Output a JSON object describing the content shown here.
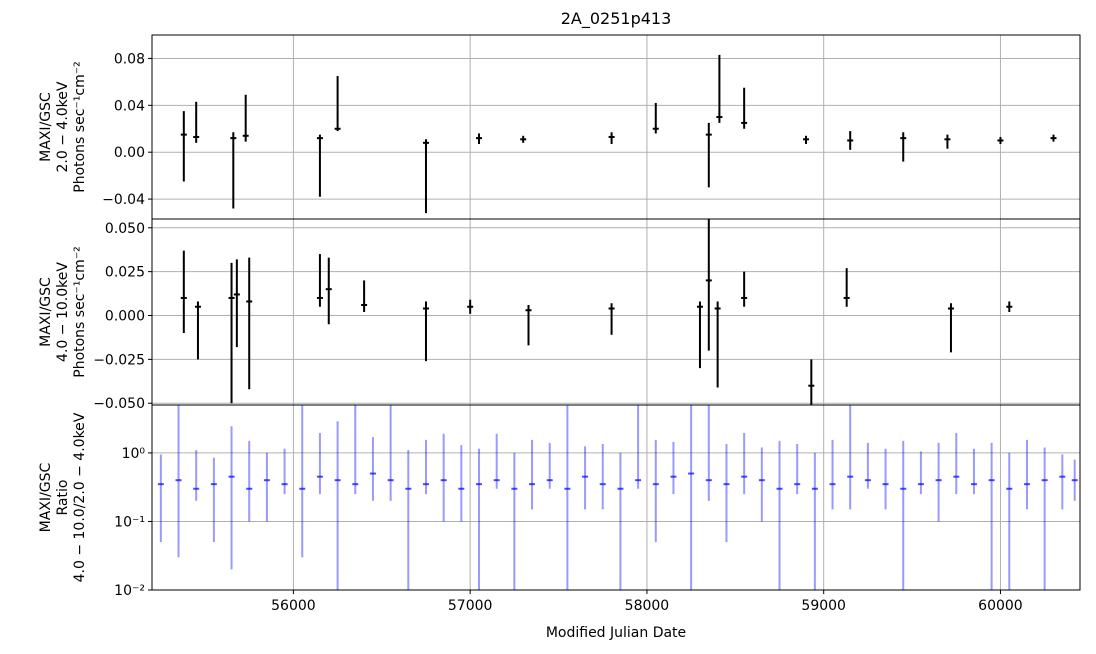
{
  "chart_data": [
    {
      "type": "line",
      "panel": "top",
      "title": "2A_0251p413",
      "ylabel_lines": [
        "MAXI/GSC",
        "2.0 − 4.0keV",
        "Photons sec⁻¹cm⁻²"
      ],
      "xlim": [
        55200,
        60450
      ],
      "ylim": [
        -0.057,
        0.1
      ],
      "yticks": [
        -0.04,
        0.0,
        0.04,
        0.08
      ],
      "ytick_labels": [
        "−0.04",
        "0.00",
        "0.04",
        "0.08"
      ],
      "grid": true,
      "series": [
        {
          "color": "#000000",
          "x": [
            55380,
            55450,
            55660,
            55730,
            56150,
            56250,
            56750,
            57050,
            57300,
            57800,
            58050,
            58350,
            58410,
            58550,
            58900,
            59150,
            59450,
            59700,
            60000,
            60300
          ],
          "y": [
            0.015,
            0.013,
            0.012,
            0.014,
            0.012,
            0.02,
            0.008,
            0.012,
            0.011,
            0.013,
            0.02,
            0.015,
            0.03,
            0.025,
            0.011,
            0.01,
            0.012,
            0.011,
            0.01,
            0.012
          ],
          "yerr_low": [
            0.04,
            0.005,
            0.06,
            0.005,
            0.05,
            0.002,
            0.06,
            0.005,
            0.003,
            0.006,
            0.004,
            0.045,
            0.005,
            0.005,
            0.004,
            0.008,
            0.02,
            0.008,
            0.003,
            0.003
          ],
          "yerr_high": [
            0.02,
            0.03,
            0.005,
            0.035,
            0.003,
            0.045,
            0.003,
            0.004,
            0.003,
            0.004,
            0.022,
            0.01,
            0.053,
            0.03,
            0.003,
            0.008,
            0.005,
            0.004,
            0.003,
            0.003
          ]
        }
      ]
    },
    {
      "type": "line",
      "panel": "middle",
      "ylabel_lines": [
        "MAXI/GSC",
        "4.0 − 10.0keV",
        "Photons sec⁻¹cm⁻²"
      ],
      "xlim": [
        55200,
        60450
      ],
      "ylim": [
        -0.051,
        0.055
      ],
      "yticks": [
        -0.05,
        -0.025,
        0.0,
        0.025,
        0.05
      ],
      "ytick_labels": [
        "−0.050",
        "−0.025",
        "0.000",
        "0.025",
        "0.050"
      ],
      "grid": true,
      "series": [
        {
          "color": "#000000",
          "x": [
            55380,
            55460,
            55650,
            55680,
            55750,
            56150,
            56200,
            56400,
            56750,
            57000,
            57330,
            57800,
            58300,
            58350,
            58400,
            58550,
            58930,
            59130,
            59720,
            60050
          ],
          "y": [
            0.01,
            0.005,
            0.01,
            0.012,
            0.008,
            0.01,
            0.015,
            0.006,
            0.004,
            0.005,
            0.003,
            0.004,
            0.005,
            0.02,
            0.004,
            0.01,
            -0.04,
            0.01,
            0.004,
            0.005
          ],
          "yerr_low": [
            0.02,
            0.03,
            0.06,
            0.03,
            0.05,
            0.005,
            0.02,
            0.004,
            0.03,
            0.004,
            0.02,
            0.015,
            0.035,
            0.04,
            0.045,
            0.005,
            0.02,
            0.005,
            0.025,
            0.003
          ],
          "yerr_high": [
            0.027,
            0.003,
            0.02,
            0.02,
            0.025,
            0.025,
            0.018,
            0.014,
            0.004,
            0.004,
            0.003,
            0.003,
            0.003,
            0.035,
            0.004,
            0.015,
            0.015,
            0.017,
            0.003,
            0.003
          ]
        }
      ]
    },
    {
      "type": "line",
      "panel": "bottom",
      "ylabel_lines": [
        "MAXI/GSC",
        "Ratio",
        "4.0 − 10.0/2.0 − 4.0keV"
      ],
      "xlabel": "Modified Julian Date",
      "xlim": [
        55200,
        60450
      ],
      "ylim": [
        0.01,
        5
      ],
      "yscale": "log",
      "yticks": [
        0.01,
        0.1,
        1.0
      ],
      "ytick_labels": [
        "10⁻²",
        "10⁻¹",
        "10⁰"
      ],
      "xticks": [
        56000,
        57000,
        58000,
        59000,
        60000
      ],
      "xtick_labels": [
        "56000",
        "57000",
        "58000",
        "59000",
        "60000"
      ],
      "grid": true,
      "series": [
        {
          "color": "#0000ff",
          "opacity": 0.4,
          "x": [
            55250,
            55350,
            55450,
            55550,
            55650,
            55750,
            55850,
            55950,
            56050,
            56150,
            56250,
            56350,
            56450,
            56550,
            56650,
            56750,
            56850,
            56950,
            57050,
            57150,
            57250,
            57350,
            57450,
            57550,
            57650,
            57750,
            57850,
            57950,
            58050,
            58150,
            58250,
            58350,
            58450,
            58550,
            58650,
            58750,
            58850,
            58950,
            59050,
            59150,
            59250,
            59350,
            59450,
            59550,
            59650,
            59750,
            59850,
            59950,
            60050,
            60150,
            60250,
            60350,
            60420
          ],
          "y": [
            0.35,
            0.4,
            0.3,
            0.35,
            0.45,
            0.3,
            0.4,
            0.35,
            0.3,
            0.45,
            0.4,
            0.35,
            0.5,
            0.4,
            0.3,
            0.35,
            0.4,
            0.3,
            0.35,
            0.4,
            0.3,
            0.35,
            0.4,
            0.3,
            0.45,
            0.35,
            0.3,
            0.4,
            0.35,
            0.45,
            0.5,
            0.4,
            0.35,
            0.45,
            0.4,
            0.3,
            0.35,
            0.3,
            0.35,
            0.45,
            0.4,
            0.35,
            0.3,
            0.35,
            0.4,
            0.45,
            0.35,
            0.4,
            0.3,
            0.35,
            0.4,
            0.45,
            0.4
          ],
          "yerr_low": [
            0.3,
            0.37,
            0.1,
            0.3,
            0.43,
            0.2,
            0.3,
            0.1,
            0.27,
            0.2,
            0.39,
            0.1,
            0.3,
            0.2,
            0.29,
            0.1,
            0.3,
            0.2,
            0.34,
            0.1,
            0.29,
            0.2,
            0.1,
            0.29,
            0.3,
            0.2,
            0.29,
            0.1,
            0.3,
            0.2,
            0.49,
            0.2,
            0.3,
            0.2,
            0.3,
            0.29,
            0.1,
            0.29,
            0.2,
            0.3,
            0.1,
            0.2,
            0.29,
            0.1,
            0.3,
            0.2,
            0.1,
            0.39,
            0.29,
            0.2,
            0.39,
            0.3,
            0.2
          ],
          "yerr_high": [
            0.6,
            4.6,
            0.8,
            0.5,
            2.0,
            1.2,
            0.6,
            0.8,
            4.6,
            1.5,
            2.5,
            4.6,
            1.2,
            4.6,
            0.8,
            1.2,
            1.5,
            1.0,
            0.8,
            1.5,
            0.7,
            1.2,
            1.0,
            4.6,
            0.8,
            1.0,
            0.7,
            4.6,
            1.2,
            1.0,
            4.5,
            4.6,
            1.0,
            1.5,
            0.8,
            1.2,
            1.0,
            0.7,
            1.2,
            4.5,
            1.0,
            0.8,
            1.2,
            0.7,
            1.0,
            1.5,
            0.8,
            1.0,
            0.7,
            1.2,
            0.8,
            0.5,
            0.4
          ]
        }
      ]
    }
  ]
}
